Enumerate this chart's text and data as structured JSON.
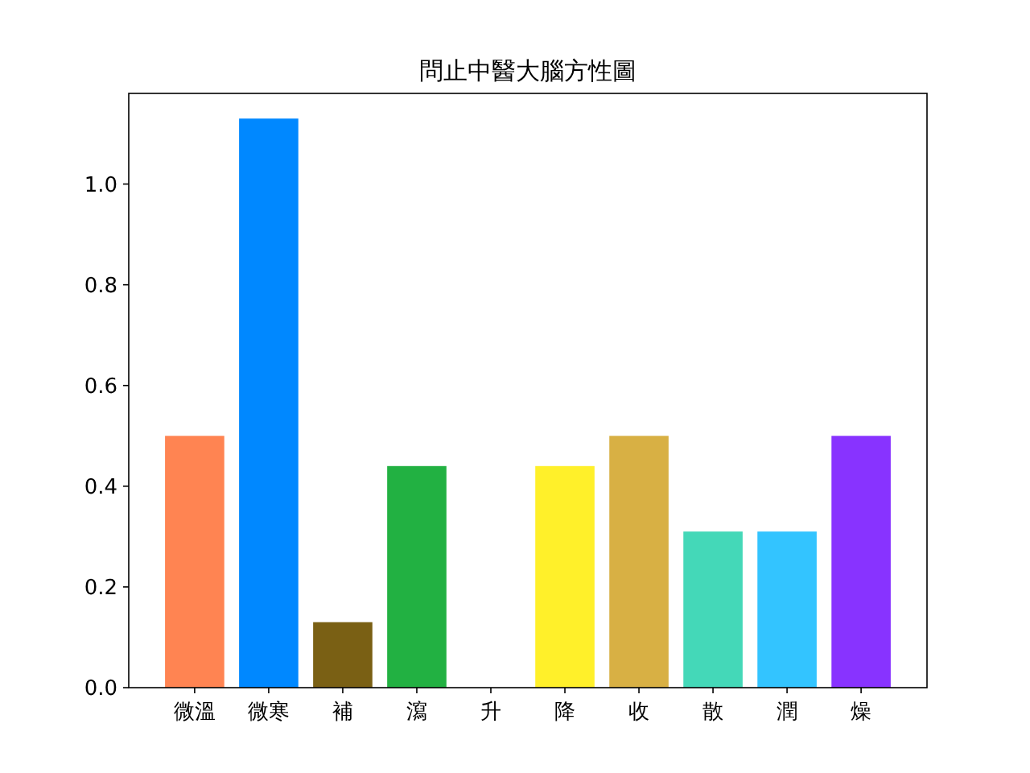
{
  "chart_data": {
    "type": "bar",
    "title": "問止中醫大腦方性圖",
    "categories": [
      "微溫",
      "微寒",
      "補",
      "瀉",
      "升",
      "降",
      "收",
      "散",
      "潤",
      "燥"
    ],
    "values": [
      0.5,
      1.13,
      0.13,
      0.44,
      0,
      0.44,
      0.5,
      0.31,
      0.31,
      0.5
    ],
    "colors": [
      "#ff8452",
      "#0088ff",
      "#7a6014",
      "#22b142",
      "#ffffff",
      "#fff02a",
      "#d8b044",
      "#44d8b8",
      "#33c4ff",
      "#8833ff"
    ],
    "ylim": [
      0,
      1.18
    ],
    "yticks": [
      {
        "value": 0,
        "label": "0.0"
      },
      {
        "value": 0.2,
        "label": "0.2"
      },
      {
        "value": 0.4,
        "label": "0.4"
      },
      {
        "value": 0.6,
        "label": "0.6"
      },
      {
        "value": 0.8,
        "label": "0.8"
      },
      {
        "value": 1.0,
        "label": "1.0"
      }
    ]
  }
}
